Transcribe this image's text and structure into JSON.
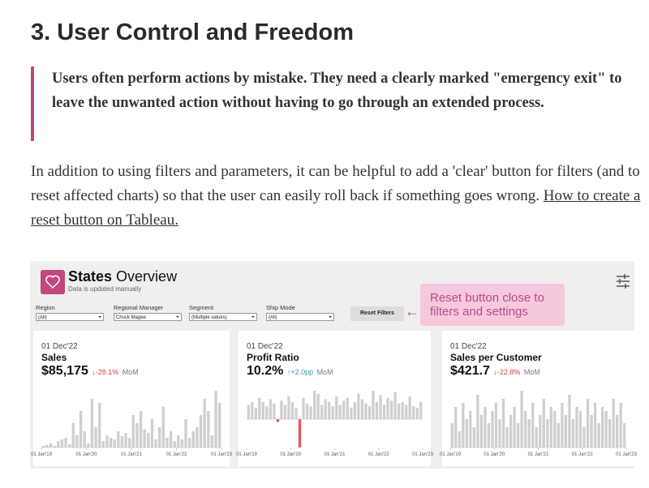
{
  "heading": "3. User Control and Freedom",
  "quote": "Users often perform actions by mistake. They need a clearly marked \"emergency exit\" to leave the unwanted action without having to go through an extended process.",
  "paragraph": {
    "text": "In addition to using filters and parameters, it can be helpful to add a 'clear' button for filters (and to reset affected charts) so that the user can easily roll back if something goes wrong. ",
    "link": "How to create a reset button on Tableau."
  },
  "dashboard": {
    "title_bold": "States",
    "title_rest": "Overview",
    "subtitle": "Data is updated manually",
    "filters": [
      {
        "label": "Region",
        "value": "(All)"
      },
      {
        "label": "Regional Manager",
        "value": "Chuck Magee"
      },
      {
        "label": "Segment",
        "value": "(Multiple values)"
      },
      {
        "label": "Ship Mode",
        "value": "(All)"
      }
    ],
    "reset_button": "Reset Filters",
    "arrow": "←",
    "callout": [
      "Reset button close to",
      "filters and settings"
    ],
    "cards": [
      {
        "date": "01 Dec'22",
        "title": "Sales",
        "value": "$85,175",
        "change": "↓-28.1%",
        "change_color": "#d6423a",
        "period": "MoM",
        "x_labels": [
          "01 Jan'19",
          "01 Jan'20",
          "01 Jan'21",
          "01 Jan'22",
          "01 Jan'23"
        ],
        "values": [
          2,
          3,
          5,
          2,
          8,
          10,
          12,
          4,
          30,
          15,
          45,
          20,
          5,
          60,
          25,
          55,
          8,
          15,
          12,
          10,
          20,
          14,
          18,
          12,
          40,
          30,
          45,
          22,
          18,
          35,
          10,
          25,
          50,
          12,
          20,
          8,
          15,
          10,
          35,
          12,
          20,
          25,
          40,
          60,
          45,
          15,
          70,
          55
        ]
      },
      {
        "date": "01 Dec'22",
        "title": "Profit Ratio",
        "value": "10.2%",
        "change": "↑+2.0pp",
        "change_color": "#3aa0b0",
        "period": "MoM",
        "x_labels": [
          "01 Jan'19",
          "01 Jan'20",
          "01 Jan'21",
          "01 Jan'22",
          "01 Jan'23"
        ],
        "values": [
          10,
          12,
          8,
          15,
          12,
          9,
          14,
          11,
          -2,
          13,
          10,
          16,
          12,
          8,
          -20,
          15,
          11,
          9,
          20,
          18,
          10,
          14,
          12,
          9,
          16,
          10,
          13,
          15,
          8,
          12,
          18,
          14,
          11,
          9,
          20,
          12,
          17,
          10,
          15,
          13,
          19,
          11,
          12,
          10,
          16,
          9,
          8,
          12
        ]
      },
      {
        "date": "01 Dec'22",
        "title": "Sales per Customer",
        "value": "$421.7",
        "change": "↓-22.8%",
        "change_color": "#d6423a",
        "period": "MoM",
        "x_labels": [
          "01 Jan'19",
          "01 Jan'20",
          "01 Jan'21",
          "01 Jan'22",
          "01 Jan'23"
        ],
        "values": [
          30,
          50,
          20,
          55,
          35,
          45,
          25,
          65,
          40,
          50,
          30,
          45,
          55,
          35,
          60,
          25,
          40,
          50,
          30,
          70,
          45,
          35,
          55,
          25,
          40,
          60,
          35,
          50,
          45,
          30,
          55,
          40,
          65,
          35,
          50,
          45,
          25,
          60,
          40,
          55,
          30,
          50,
          45,
          35,
          60,
          40,
          55,
          30
        ]
      }
    ]
  }
}
